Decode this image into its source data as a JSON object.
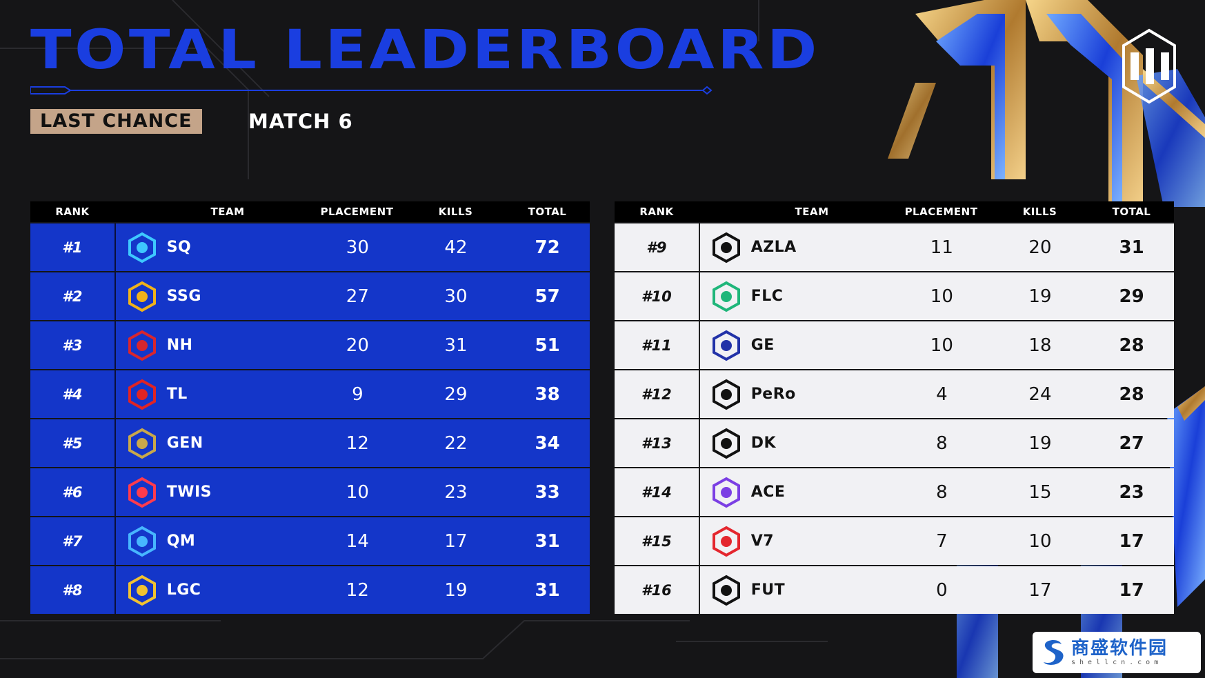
{
  "header": {
    "title": "TOTAL LEADERBOARD",
    "tag": "LAST CHANCE",
    "match": "MATCH 6"
  },
  "brand_logo_icon": "pgc-logo-icon",
  "columns": {
    "rank": "RANK",
    "team": "TEAM",
    "placement": "PLACEMENT",
    "kills": "KILLS",
    "total": "TOTAL"
  },
  "colors": {
    "accent_blue": "#1436c9",
    "title_blue": "#1a3ee0",
    "tag_tan": "#c4a489",
    "row_light": "#f1f1f4"
  },
  "left_board": [
    {
      "rank": "#1",
      "team": "SQ",
      "placement": "30",
      "kills": "42",
      "total": "72",
      "logo": "sq-logo-icon"
    },
    {
      "rank": "#2",
      "team": "SSG",
      "placement": "27",
      "kills": "30",
      "total": "57",
      "logo": "ssg-logo-icon"
    },
    {
      "rank": "#3",
      "team": "NH",
      "placement": "20",
      "kills": "31",
      "total": "51",
      "logo": "nh-logo-icon"
    },
    {
      "rank": "#4",
      "team": "TL",
      "placement": "9",
      "kills": "29",
      "total": "38",
      "logo": "tl-logo-icon"
    },
    {
      "rank": "#5",
      "team": "GEN",
      "placement": "12",
      "kills": "22",
      "total": "34",
      "logo": "gen-logo-icon"
    },
    {
      "rank": "#6",
      "team": "TWIS",
      "placement": "10",
      "kills": "23",
      "total": "33",
      "logo": "twis-logo-icon"
    },
    {
      "rank": "#7",
      "team": "QM",
      "placement": "14",
      "kills": "17",
      "total": "31",
      "logo": "qm-logo-icon"
    },
    {
      "rank": "#8",
      "team": "LGC",
      "placement": "12",
      "kills": "19",
      "total": "31",
      "logo": "lgc-logo-icon"
    }
  ],
  "right_board": [
    {
      "rank": "#9",
      "team": "AZLA",
      "placement": "11",
      "kills": "20",
      "total": "31",
      "logo": "azla-logo-icon"
    },
    {
      "rank": "#10",
      "team": "FLC",
      "placement": "10",
      "kills": "19",
      "total": "29",
      "logo": "flc-logo-icon"
    },
    {
      "rank": "#11",
      "team": "GE",
      "placement": "10",
      "kills": "18",
      "total": "28",
      "logo": "ge-logo-icon"
    },
    {
      "rank": "#12",
      "team": "PeRo",
      "placement": "4",
      "kills": "24",
      "total": "28",
      "logo": "pero-logo-icon"
    },
    {
      "rank": "#13",
      "team": "DK",
      "placement": "8",
      "kills": "19",
      "total": "27",
      "logo": "dk-logo-icon"
    },
    {
      "rank": "#14",
      "team": "ACE",
      "placement": "8",
      "kills": "15",
      "total": "23",
      "logo": "ace-logo-icon"
    },
    {
      "rank": "#15",
      "team": "V7",
      "placement": "7",
      "kills": "10",
      "total": "17",
      "logo": "v7-logo-icon"
    },
    {
      "rank": "#16",
      "team": "FUT",
      "placement": "0",
      "kills": "17",
      "total": "17",
      "logo": "fut-logo-icon"
    }
  ],
  "watermark": {
    "cn": "商盛软件园",
    "en": "shellcn.com"
  }
}
